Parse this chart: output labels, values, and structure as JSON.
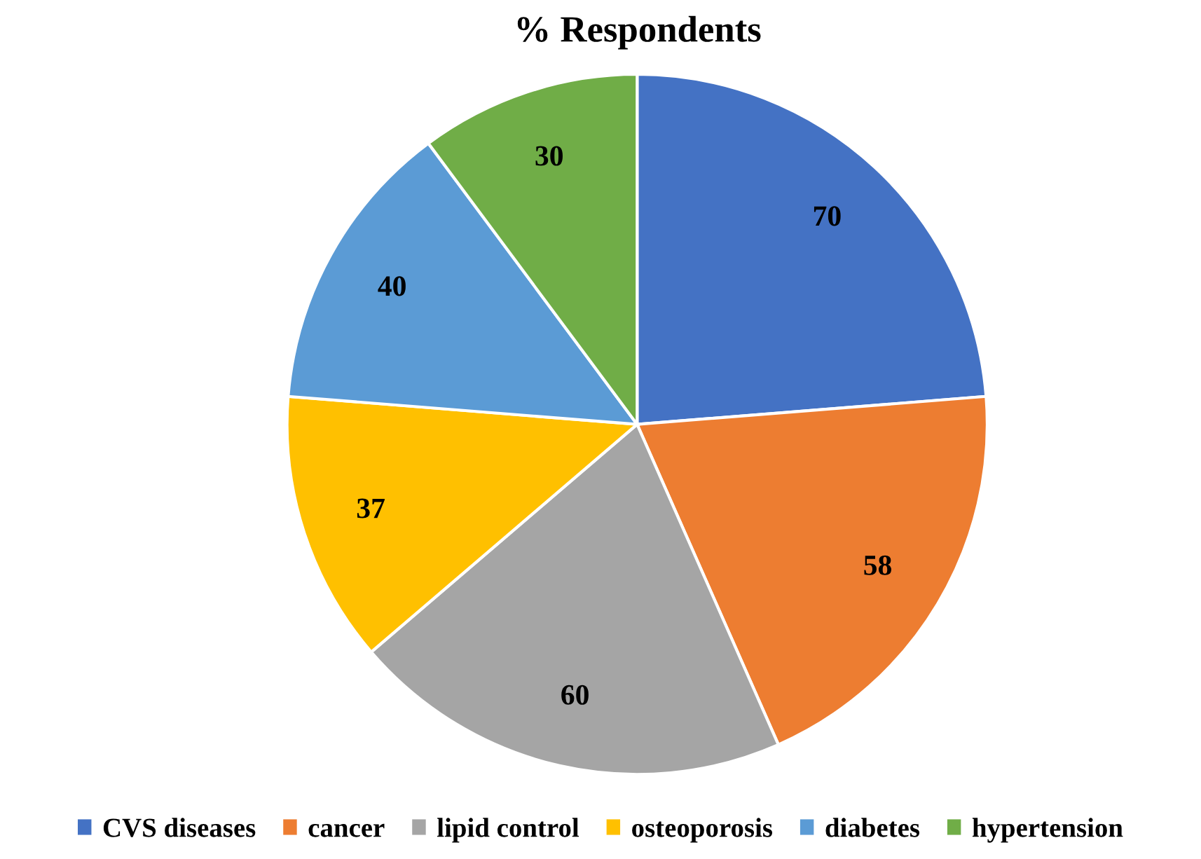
{
  "chart_data": {
    "type": "pie",
    "title": "% Respondents",
    "categories": [
      "CVS diseases",
      "cancer",
      "lipid control",
      "osteoporosis",
      "diabetes",
      "hypertension"
    ],
    "values": [
      70,
      58,
      60,
      37,
      40,
      30
    ],
    "colors": [
      "#4472c4",
      "#ed7d31",
      "#a5a5a5",
      "#ffc000",
      "#5b9bd5",
      "#70ad47"
    ],
    "data_labels": true,
    "legend": "bottom"
  }
}
